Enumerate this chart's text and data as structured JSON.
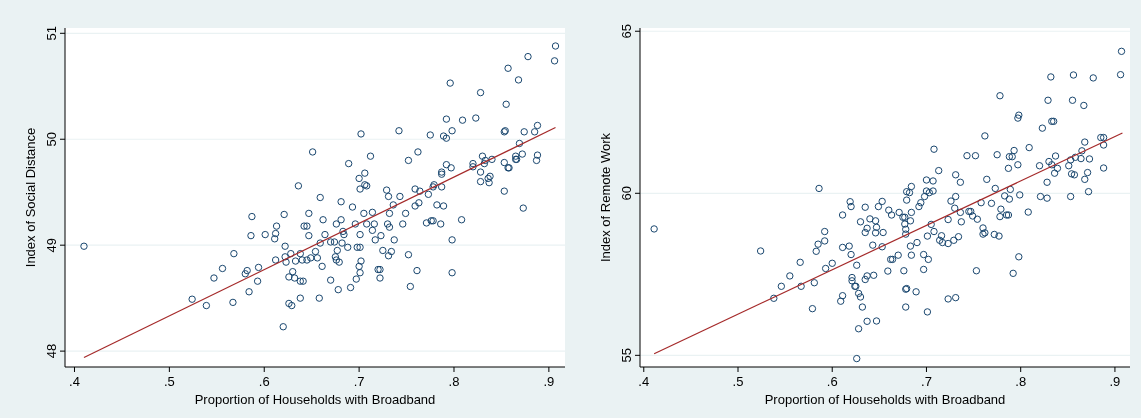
{
  "chart_data": [
    {
      "type": "scatter",
      "xlabel": "Proportion of Households with Broadband",
      "ylabel": "Index of Social Distance",
      "xlim": [
        0.39,
        0.917
      ],
      "ylim": [
        47.85,
        51.05
      ],
      "xticks": [
        {
          "value": 0.4,
          "label": ".4"
        },
        {
          "value": 0.5,
          "label": ".5"
        },
        {
          "value": 0.6,
          "label": ".6"
        },
        {
          "value": 0.7,
          "label": ".7"
        },
        {
          "value": 0.8,
          "label": ".8"
        },
        {
          "value": 0.9,
          "label": ".9"
        }
      ],
      "yticks": [
        48,
        49,
        50,
        51
      ],
      "grid": "y",
      "marker": "circle",
      "series": [
        {
          "color": "#1a476f",
          "x": [
            0.41,
            0.524,
            0.539,
            0.547,
            0.556,
            0.567,
            0.568,
            0.58,
            0.582,
            0.584,
            0.586,
            0.587,
            0.593,
            0.594,
            0.601,
            0.611,
            0.612,
            0.613,
            0.612,
            0.62,
            0.621,
            0.622,
            0.622,
            0.623,
            0.626,
            0.626,
            0.628,
            0.629,
            0.63,
            0.632,
            0.633,
            0.636,
            0.638,
            0.638,
            0.638,
            0.64,
            0.641,
            0.642,
            0.645,
            0.647,
            0.647,
            0.651,
            0.645,
            0.649,
            0.654,
            0.656,
            0.659,
            0.661,
            0.659,
            0.658,
            0.662,
            0.664,
            0.67,
            0.67,
            0.674,
            0.675,
            0.676,
            0.676,
            0.677,
            0.678,
            0.679,
            0.681,
            0.681,
            0.682,
            0.683,
            0.684,
            0.688,
            0.689,
            0.691,
            0.693,
            0.696,
            0.697,
            0.698,
            0.7,
            0.701,
            0.701,
            0.701,
            0.7,
            0.701,
            0.702,
            0.702,
            0.705,
            0.706,
            0.706,
            0.708,
            0.708,
            0.712,
            0.714,
            0.714,
            0.716,
            0.717,
            0.72,
            0.722,
            0.722,
            0.723,
            0.725,
            0.729,
            0.73,
            0.731,
            0.731,
            0.732,
            0.732,
            0.734,
            0.736,
            0.737,
            0.742,
            0.743,
            0.746,
            0.749,
            0.752,
            0.752,
            0.754,
            0.759,
            0.759,
            0.761,
            0.762,
            0.763,
            0.764,
            0.771,
            0.773,
            0.775,
            0.776,
            0.778,
            0.778,
            0.779,
            0.782,
            0.786,
            0.787,
            0.787,
            0.787,
            0.789,
            0.789,
            0.792,
            0.792,
            0.792,
            0.796,
            0.797,
            0.798,
            0.798,
            0.798,
            0.808,
            0.809,
            0.82,
            0.82,
            0.823,
            0.828,
            0.828,
            0.828,
            0.83,
            0.832,
            0.833,
            0.836,
            0.837,
            0.838,
            0.84,
            0.853,
            0.853,
            0.853,
            0.854,
            0.855,
            0.857,
            0.857,
            0.858,
            0.865,
            0.865,
            0.866,
            0.868,
            0.869,
            0.872,
            0.873,
            0.874,
            0.878,
            0.885,
            0.887,
            0.888,
            0.888,
            0.906,
            0.907
          ],
          "values": [
            48.99,
            48.49,
            48.43,
            48.69,
            48.78,
            48.46,
            48.92,
            48.73,
            48.76,
            48.56,
            49.09,
            49.27,
            48.66,
            48.79,
            49.1,
            49.06,
            49.11,
            49.18,
            48.86,
            48.23,
            49.29,
            48.99,
            48.89,
            48.84,
            48.45,
            48.7,
            48.92,
            48.43,
            48.75,
            48.69,
            48.85,
            49.56,
            48.5,
            48.92,
            48.66,
            48.86,
            48.66,
            49.18,
            49.18,
            49.3,
            49.09,
            49.88,
            48.86,
            48.88,
            48.94,
            48.88,
            49.02,
            48.8,
            49.45,
            48.5,
            49.24,
            49.1,
            48.67,
            49.03,
            49.03,
            48.89,
            49.2,
            48.86,
            48.95,
            48.58,
            48.84,
            49.24,
            49.41,
            49.02,
            49.13,
            49.1,
            48.98,
            49.77,
            48.6,
            49.36,
            49.2,
            48.68,
            48.98,
            48.8,
            48.74,
            48.98,
            49.1,
            49.63,
            49.53,
            50.05,
            48.85,
            49.3,
            49.68,
            49.57,
            49.56,
            49.2,
            49.84,
            49.31,
            49.14,
            49.2,
            49.05,
            48.77,
            48.77,
            48.69,
            49.09,
            48.95,
            49.52,
            49.2,
            48.9,
            49.46,
            49.17,
            49.3,
            48.94,
            49.38,
            49.05,
            50.08,
            49.46,
            49.2,
            49.3,
            49.8,
            48.91,
            48.61,
            49.37,
            49.53,
            48.76,
            49.88,
            49.4,
            49.51,
            49.21,
            49.48,
            50.04,
            49.23,
            49.23,
            49.55,
            49.57,
            49.38,
            49.2,
            49.55,
            49.69,
            49.67,
            49.37,
            50.03,
            50.01,
            49.76,
            50.19,
            50.53,
            49.73,
            50.08,
            49.05,
            48.74,
            49.24,
            50.18,
            49.77,
            49.74,
            50.2,
            49.6,
            50.44,
            49.69,
            49.84,
            49.77,
            49.8,
            49.63,
            49.59,
            49.65,
            49.81,
            49.78,
            49.51,
            50.07,
            50.08,
            50.33,
            50.67,
            49.73,
            49.73,
            49.81,
            49.84,
            49.81,
            50.56,
            49.96,
            49.86,
            49.35,
            50.07,
            50.78,
            50.07,
            49.8,
            50.13,
            49.85,
            50.74,
            50.88
          ]
        },
        {
          "type": "line",
          "marker": "none",
          "color": "#a52a2a",
          "x": [
            0.41,
            0.907
          ],
          "values": [
            47.94,
            50.11
          ]
        }
      ]
    },
    {
      "type": "scatter",
      "xlabel": "Proportion of Households with Broadband",
      "ylabel": "Index of Remote Work",
      "xlim": [
        0.396,
        0.916
      ],
      "ylim": [
        54.64,
        65.1
      ],
      "xticks": [
        {
          "value": 0.4,
          "label": ".4"
        },
        {
          "value": 0.5,
          "label": ".5"
        },
        {
          "value": 0.6,
          "label": ".6"
        },
        {
          "value": 0.7,
          "label": ".7"
        },
        {
          "value": 0.8,
          "label": ".8"
        },
        {
          "value": 0.9,
          "label": ".9"
        }
      ],
      "yticks": [
        55,
        60,
        65
      ],
      "grid": "y",
      "marker": "circle",
      "series": [
        {
          "color": "#1a476f",
          "x": [
            0.411,
            0.524,
            0.538,
            0.546,
            0.555,
            0.566,
            0.567,
            0.579,
            0.581,
            0.583,
            0.585,
            0.586,
            0.592,
            0.592,
            0.593,
            0.6,
            0.609,
            0.611,
            0.611,
            0.611,
            0.618,
            0.619,
            0.62,
            0.62,
            0.621,
            0.621,
            0.624,
            0.625,
            0.626,
            0.626,
            0.628,
            0.628,
            0.63,
            0.63,
            0.632,
            0.635,
            0.635,
            0.635,
            0.637,
            0.637,
            0.637,
            0.64,
            0.643,
            0.644,
            0.646,
            0.646,
            0.647,
            0.647,
            0.649,
            0.653,
            0.653,
            0.654,
            0.659,
            0.66,
            0.663,
            0.664,
            0.662,
            0.67,
            0.671,
            0.675,
            0.676,
            0.677,
            0.677,
            0.678,
            0.678,
            0.678,
            0.679,
            0.678,
            0.679,
            0.679,
            0.682,
            0.683,
            0.683,
            0.684,
            0.684,
            0.684,
            0.689,
            0.69,
            0.692,
            0.694,
            0.697,
            0.698,
            0.697,
            0.7,
            0.7,
            0.701,
            0.701,
            0.702,
            0.703,
            0.705,
            0.707,
            0.707,
            0.708,
            0.708,
            0.713,
            0.714,
            0.716,
            0.717,
            0.723,
            0.723,
            0.723,
            0.726,
            0.729,
            0.73,
            0.731,
            0.731,
            0.731,
            0.734,
            0.736,
            0.736,
            0.737,
            0.743,
            0.745,
            0.747,
            0.749,
            0.752,
            0.753,
            0.754,
            0.758,
            0.76,
            0.76,
            0.762,
            0.762,
            0.764,
            0.769,
            0.772,
            0.773,
            0.775,
            0.777,
            0.778,
            0.778,
            0.779,
            0.783,
            0.785,
            0.787,
            0.787,
            0.788,
            0.788,
            0.789,
            0.791,
            0.792,
            0.793,
            0.797,
            0.798,
            0.797,
            0.798,
            0.799,
            0.808,
            0.809,
            0.82,
            0.821,
            0.823,
            0.828,
            0.828,
            0.829,
            0.83,
            0.832,
            0.833,
            0.835,
            0.833,
            0.836,
            0.837,
            0.839,
            0.851,
            0.853,
            0.853,
            0.854,
            0.855,
            0.856,
            0.857,
            0.858,
            0.864,
            0.865,
            0.867,
            0.868,
            0.868,
            0.871,
            0.872,
            0.873,
            0.877,
            0.885,
            0.888,
            0.888,
            0.888,
            0.906,
            0.907
          ],
          "values": [
            58.9,
            58.22,
            56.76,
            57.13,
            57.45,
            57.87,
            57.13,
            56.44,
            57.24,
            58.21,
            58.43,
            60.15,
            58.53,
            58.82,
            57.68,
            57.84,
            56.67,
            59.33,
            56.84,
            58.33,
            58.37,
            59.74,
            59.59,
            58.11,
            57.4,
            57.3,
            57.13,
            57.13,
            54.9,
            57.78,
            56.91,
            55.82,
            59.12,
            56.8,
            56.49,
            57.34,
            58.79,
            59.57,
            57.45,
            58.92,
            56.05,
            59.21,
            58.4,
            57.47,
            58.78,
            59.15,
            58.95,
            56.06,
            59.59,
            59.75,
            58.35,
            58.79,
            57.6,
            59.48,
            59.33,
            57.96,
            57.96,
            58.09,
            59.41,
            59.26,
            57.61,
            59.26,
            59.05,
            58.89,
            58.74,
            57.04,
            57.06,
            56.49,
            59.79,
            60.05,
            60.02,
            58.37,
            59.15,
            59.41,
            60.21,
            58.09,
            56.96,
            58.48,
            59.59,
            59.71,
            57.65,
            59.9,
            58.11,
            60.41,
            60.07,
            58.68,
            56.34,
            57.96,
            60.02,
            59.04,
            60.38,
            60.07,
            61.36,
            58.82,
            60.7,
            58.55,
            58.69,
            58.48,
            58.45,
            56.74,
            59.19,
            59.76,
            58.55,
            59.54,
            59.9,
            60.57,
            56.78,
            58.66,
            60.34,
            59.41,
            59.12,
            61.16,
            59.44,
            59.44,
            59.3,
            61.16,
            57.61,
            59.2,
            59.71,
            58.93,
            58.74,
            58.78,
            61.77,
            60.43,
            59.69,
            58.73,
            60.15,
            61.19,
            58.68,
            63.01,
            59.28,
            59.51,
            59.92,
            59.33,
            59.33,
            60.77,
            59.82,
            61.13,
            60.12,
            61.13,
            57.53,
            61.32,
            62.32,
            62.41,
            60.88,
            58.04,
            59.95,
            59.42,
            61.41,
            60.85,
            59.9,
            62.01,
            59.85,
            60.34,
            62.87,
            60.98,
            63.59,
            62.22,
            62.22,
            60.88,
            60.62,
            61.15,
            60.77,
            60.85,
            59.9,
            61.03,
            60.6,
            62.87,
            63.65,
            60.57,
            61.11,
            61.07,
            61.31,
            62.71,
            60.43,
            61.58,
            60.64,
            60.05,
            61.06,
            63.56,
            61.72,
            61.72,
            60.78,
            61.49,
            63.66,
            64.38
          ]
        },
        {
          "type": "line",
          "marker": "none",
          "color": "#a52a2a",
          "x": [
            0.411,
            0.908
          ],
          "values": [
            55.05,
            61.86
          ]
        }
      ]
    }
  ]
}
